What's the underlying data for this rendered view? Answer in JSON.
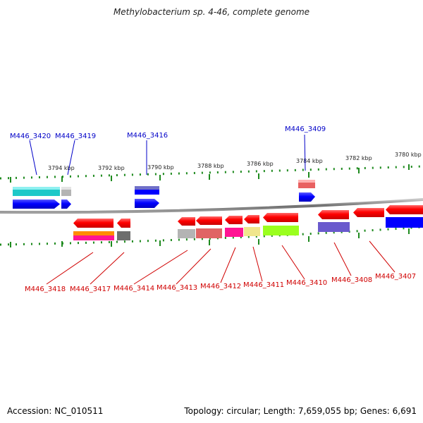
{
  "title": "Methylobacterium sp. 4-46, complete genome",
  "footer": {
    "accession": "Accession: NC_010511",
    "summary": "Topology: circular; Length: 7,659,055 bp; Genes: 6,691"
  },
  "colors": {
    "top_label": "#0000c8",
    "bottom_label": "#d00000",
    "backbone": "#8a8a8a",
    "tick": "#1e8a1e"
  },
  "kbp_labels": [
    "3794 kbp",
    "3792 kbp",
    "3790 kbp",
    "3788 kbp",
    "3786 kbp",
    "3784 kbp",
    "3782 kbp",
    "3780 kbp"
  ],
  "top_genes": [
    "M446_3420",
    "M446_3419",
    "M446_3416",
    "M446_3409"
  ],
  "bottom_genes": [
    "M446_3418",
    "M446_3417",
    "M446_3414",
    "M446_3413",
    "M446_3412",
    "M446_3411",
    "M446_3410",
    "M446_3408",
    "M446_3407"
  ]
}
